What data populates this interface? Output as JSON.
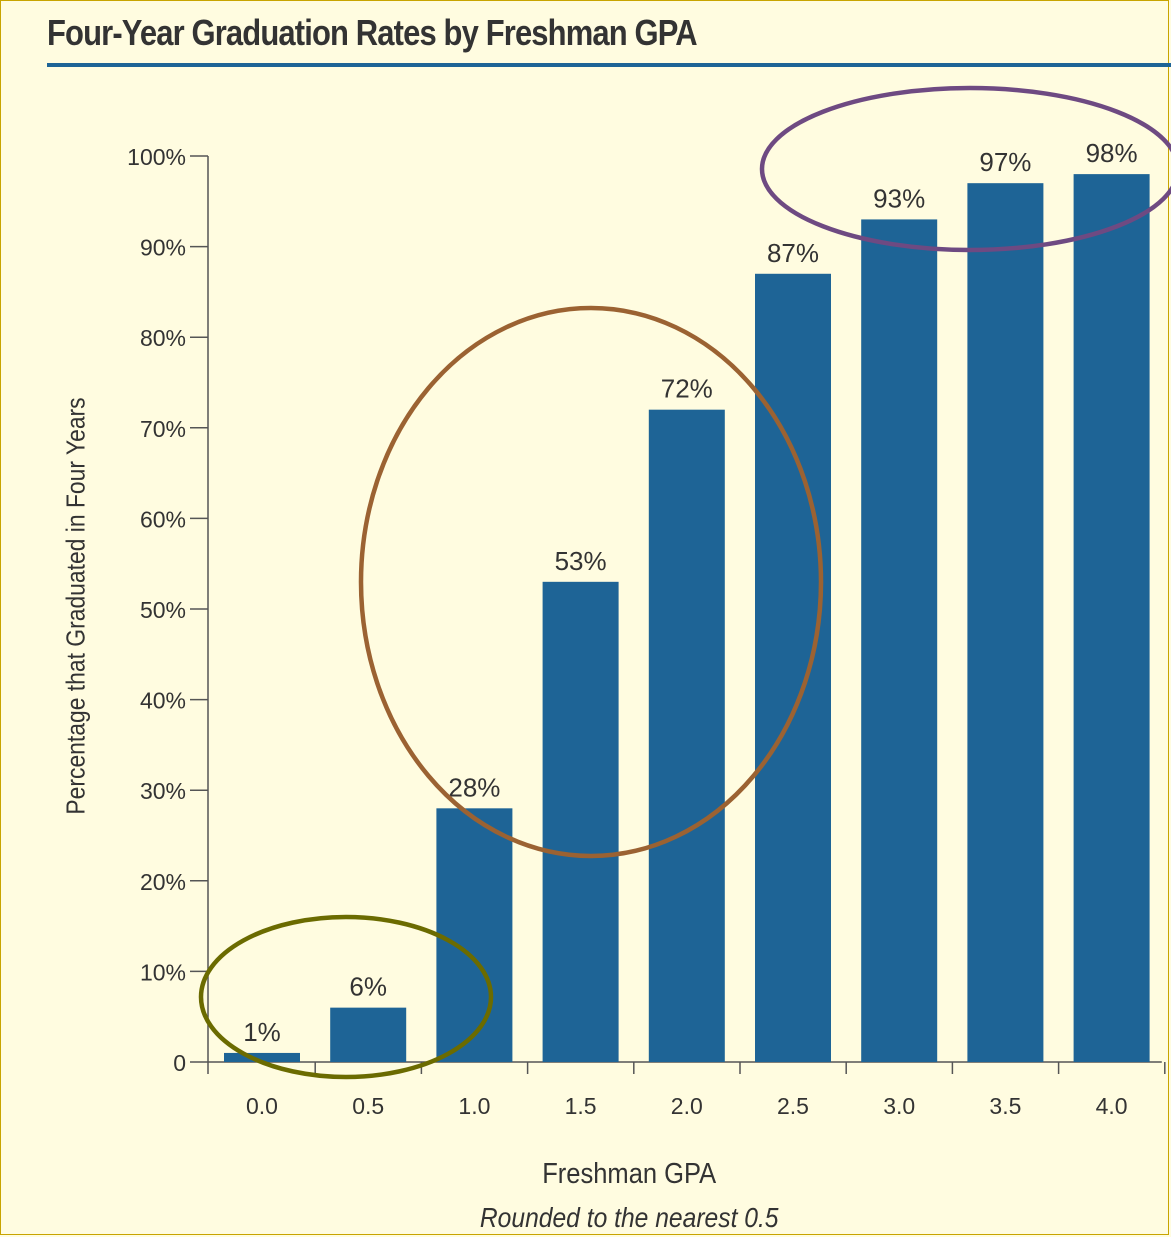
{
  "title": "Four-Year Graduation Rates by Freshman GPA",
  "chart_data": {
    "type": "bar",
    "title": "Four-Year Graduation Rates by Freshman GPA",
    "xlabel": "Freshman GPA",
    "xlabel_note": "Rounded to the nearest 0.5",
    "ylabel": "Percentage that Graduated in Four Years",
    "categories": [
      "0.0",
      "0.5",
      "1.0",
      "1.5",
      "2.0",
      "2.5",
      "3.0",
      "3.5",
      "4.0"
    ],
    "values": [
      1,
      6,
      28,
      53,
      72,
      87,
      93,
      97,
      98
    ],
    "data_labels": [
      "1%",
      "6%",
      "28%",
      "53%",
      "72%",
      "87%",
      "93%",
      "97%",
      "98%"
    ],
    "ylim": [
      0,
      100
    ],
    "yticks": [
      0,
      10,
      20,
      30,
      40,
      50,
      60,
      70,
      80,
      90,
      100
    ],
    "ytick_labels": [
      "0",
      "10%",
      "20%",
      "30%",
      "40%",
      "50%",
      "60%",
      "70%",
      "80%",
      "90%",
      "100%"
    ],
    "bar_color": "#1e6496",
    "grid": false,
    "annotations": [
      {
        "shape": "ellipse",
        "color": "#6b6b00",
        "encloses": [
          "0.0",
          "0.5"
        ]
      },
      {
        "shape": "ellipse",
        "color": "#9b6232",
        "encloses": [
          "1.0",
          "1.5",
          "2.0"
        ]
      },
      {
        "shape": "ellipse",
        "color": "#6e4a82",
        "encloses": [
          "3.0",
          "3.5",
          "4.0"
        ]
      }
    ]
  }
}
